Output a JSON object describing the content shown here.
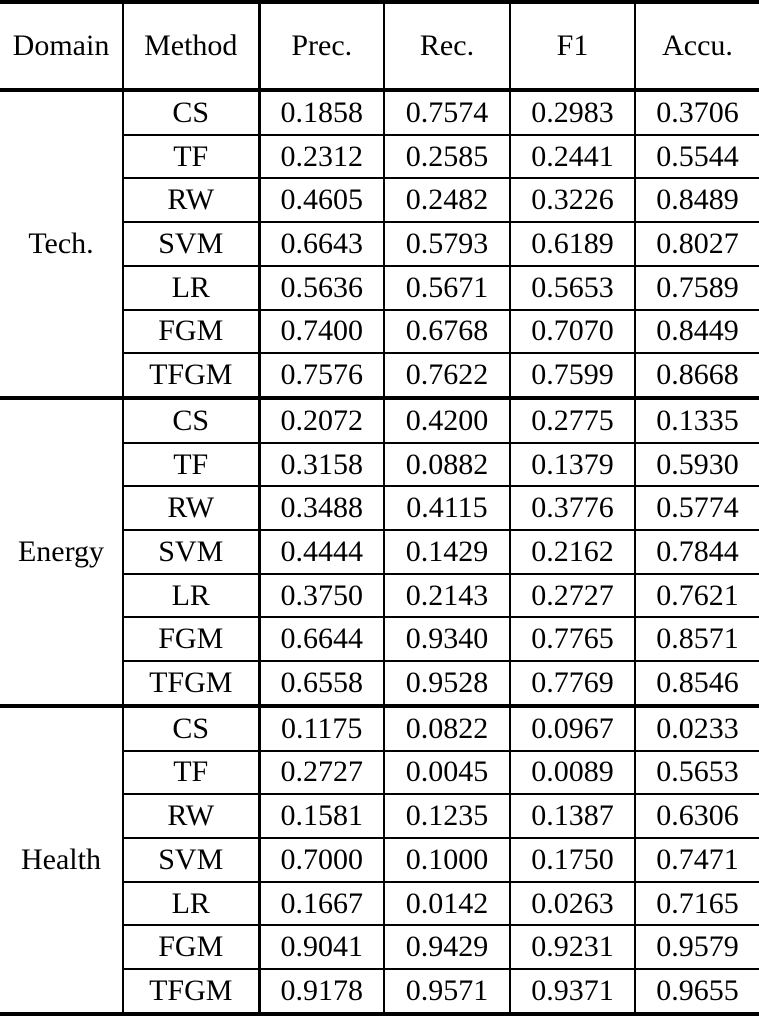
{
  "page": {
    "background_color": "#ffffff",
    "text_color": "#000000",
    "rule_color": "#000000"
  },
  "table": {
    "columns": [
      {
        "label": "Domain"
      },
      {
        "label": "Method"
      },
      {
        "label": "Prec."
      },
      {
        "label": "Rec."
      },
      {
        "label": "F1"
      },
      {
        "label": "Accu."
      }
    ],
    "sections": [
      {
        "domain": "Tech.",
        "rows": [
          {
            "method": "CS",
            "values": [
              "0.1858",
              "0.7574",
              "0.2983",
              "0.3706"
            ],
            "bold": [
              false,
              false,
              false,
              false
            ]
          },
          {
            "method": "TF",
            "values": [
              "0.2312",
              "0.2585",
              "0.2441",
              "0.5544"
            ],
            "bold": [
              false,
              false,
              false,
              false
            ]
          },
          {
            "method": "RW",
            "values": [
              "0.4605",
              "0.2482",
              "0.3226",
              "0.8489"
            ],
            "bold": [
              false,
              false,
              false,
              false
            ]
          },
          {
            "method": "SVM",
            "values": [
              "0.6643",
              "0.5793",
              "0.6189",
              "0.8027"
            ],
            "bold": [
              false,
              false,
              false,
              false
            ]
          },
          {
            "method": "LR",
            "values": [
              "0.5636",
              "0.5671",
              "0.5653",
              "0.7589"
            ],
            "bold": [
              false,
              false,
              false,
              false
            ]
          },
          {
            "method": "FGM",
            "values": [
              "0.7400",
              "0.6768",
              "0.7070",
              "0.8449"
            ],
            "bold": [
              false,
              false,
              false,
              false
            ]
          },
          {
            "method": "TFGM",
            "values": [
              "0.7576",
              "0.7622",
              "0.7599",
              "0.8668"
            ],
            "bold": [
              true,
              true,
              true,
              true
            ]
          }
        ]
      },
      {
        "domain": "Energy",
        "rows": [
          {
            "method": "CS",
            "values": [
              "0.2072",
              "0.4200",
              "0.2775",
              "0.1335"
            ],
            "bold": [
              false,
              false,
              false,
              false
            ]
          },
          {
            "method": "TF",
            "values": [
              "0.3158",
              "0.0882",
              "0.1379",
              "0.5930"
            ],
            "bold": [
              false,
              false,
              false,
              false
            ]
          },
          {
            "method": "RW",
            "values": [
              "0.3488",
              "0.4115",
              "0.3776",
              "0.5774"
            ],
            "bold": [
              false,
              false,
              false,
              false
            ]
          },
          {
            "method": "SVM",
            "values": [
              "0.4444",
              "0.1429",
              "0.2162",
              "0.7844"
            ],
            "bold": [
              false,
              false,
              false,
              false
            ]
          },
          {
            "method": "LR",
            "values": [
              "0.3750",
              "0.2143",
              "0.2727",
              "0.7621"
            ],
            "bold": [
              false,
              false,
              false,
              false
            ]
          },
          {
            "method": "FGM",
            "values": [
              "0.6644",
              "0.9340",
              "0.7765",
              "0.8571"
            ],
            "bold": [
              true,
              false,
              false,
              true
            ]
          },
          {
            "method": "TFGM",
            "values": [
              "0.6558",
              "0.9528",
              "0.7769",
              "0.8546"
            ],
            "bold": [
              false,
              true,
              true,
              false
            ]
          }
        ]
      },
      {
        "domain": "Health",
        "rows": [
          {
            "method": "CS",
            "values": [
              "0.1175",
              "0.0822",
              "0.0967",
              "0.0233"
            ],
            "bold": [
              false,
              false,
              false,
              false
            ]
          },
          {
            "method": "TF",
            "values": [
              "0.2727",
              "0.0045",
              "0.0089",
              "0.5653"
            ],
            "bold": [
              false,
              false,
              false,
              false
            ]
          },
          {
            "method": "RW",
            "values": [
              "0.1581",
              "0.1235",
              "0.1387",
              "0.6306"
            ],
            "bold": [
              false,
              false,
              false,
              false
            ]
          },
          {
            "method": "SVM",
            "values": [
              "0.7000",
              "0.1000",
              "0.1750",
              "0.7471"
            ],
            "bold": [
              false,
              false,
              false,
              false
            ]
          },
          {
            "method": "LR",
            "values": [
              "0.1667",
              "0.0142",
              "0.0263",
              "0.7165"
            ],
            "bold": [
              false,
              false,
              false,
              false
            ]
          },
          {
            "method": "FGM",
            "values": [
              "0.9041",
              "0.9429",
              "0.9231",
              "0.9579"
            ],
            "bold": [
              false,
              false,
              false,
              false
            ]
          },
          {
            "method": "TFGM",
            "values": [
              "0.9178",
              "0.9571",
              "0.9371",
              "0.9655"
            ],
            "bold": [
              true,
              true,
              true,
              true
            ]
          }
        ]
      }
    ]
  }
}
